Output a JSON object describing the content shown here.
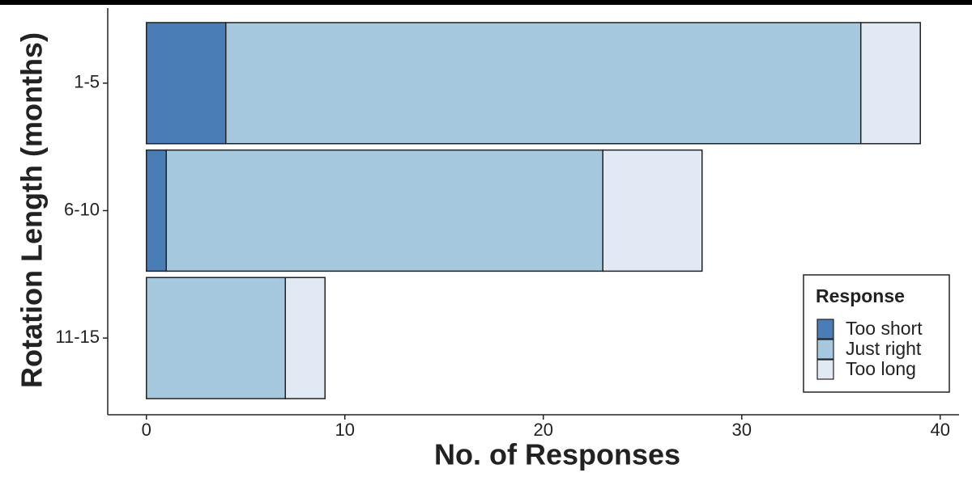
{
  "chart_data": {
    "type": "bar",
    "orientation": "horizontal",
    "stacked": true,
    "x_label": "No. of Responses",
    "y_label": "Rotation Length (months)",
    "categories": [
      "1-5",
      "6-10",
      "11-15"
    ],
    "series": [
      {
        "name": "Too short",
        "color": "#4a7db5",
        "values": [
          4,
          1,
          0
        ]
      },
      {
        "name": "Just right",
        "color": "#a6c8df",
        "values": [
          32,
          22,
          7
        ]
      },
      {
        "name": "Too long",
        "color": "#e0e9f4",
        "values": [
          3,
          5,
          2
        ]
      }
    ],
    "xlim": [
      -1.95,
      40.95
    ],
    "xticks": [
      0,
      10,
      20,
      30,
      40
    ],
    "legend_title": "Response",
    "legend_position": "bottom-right"
  }
}
